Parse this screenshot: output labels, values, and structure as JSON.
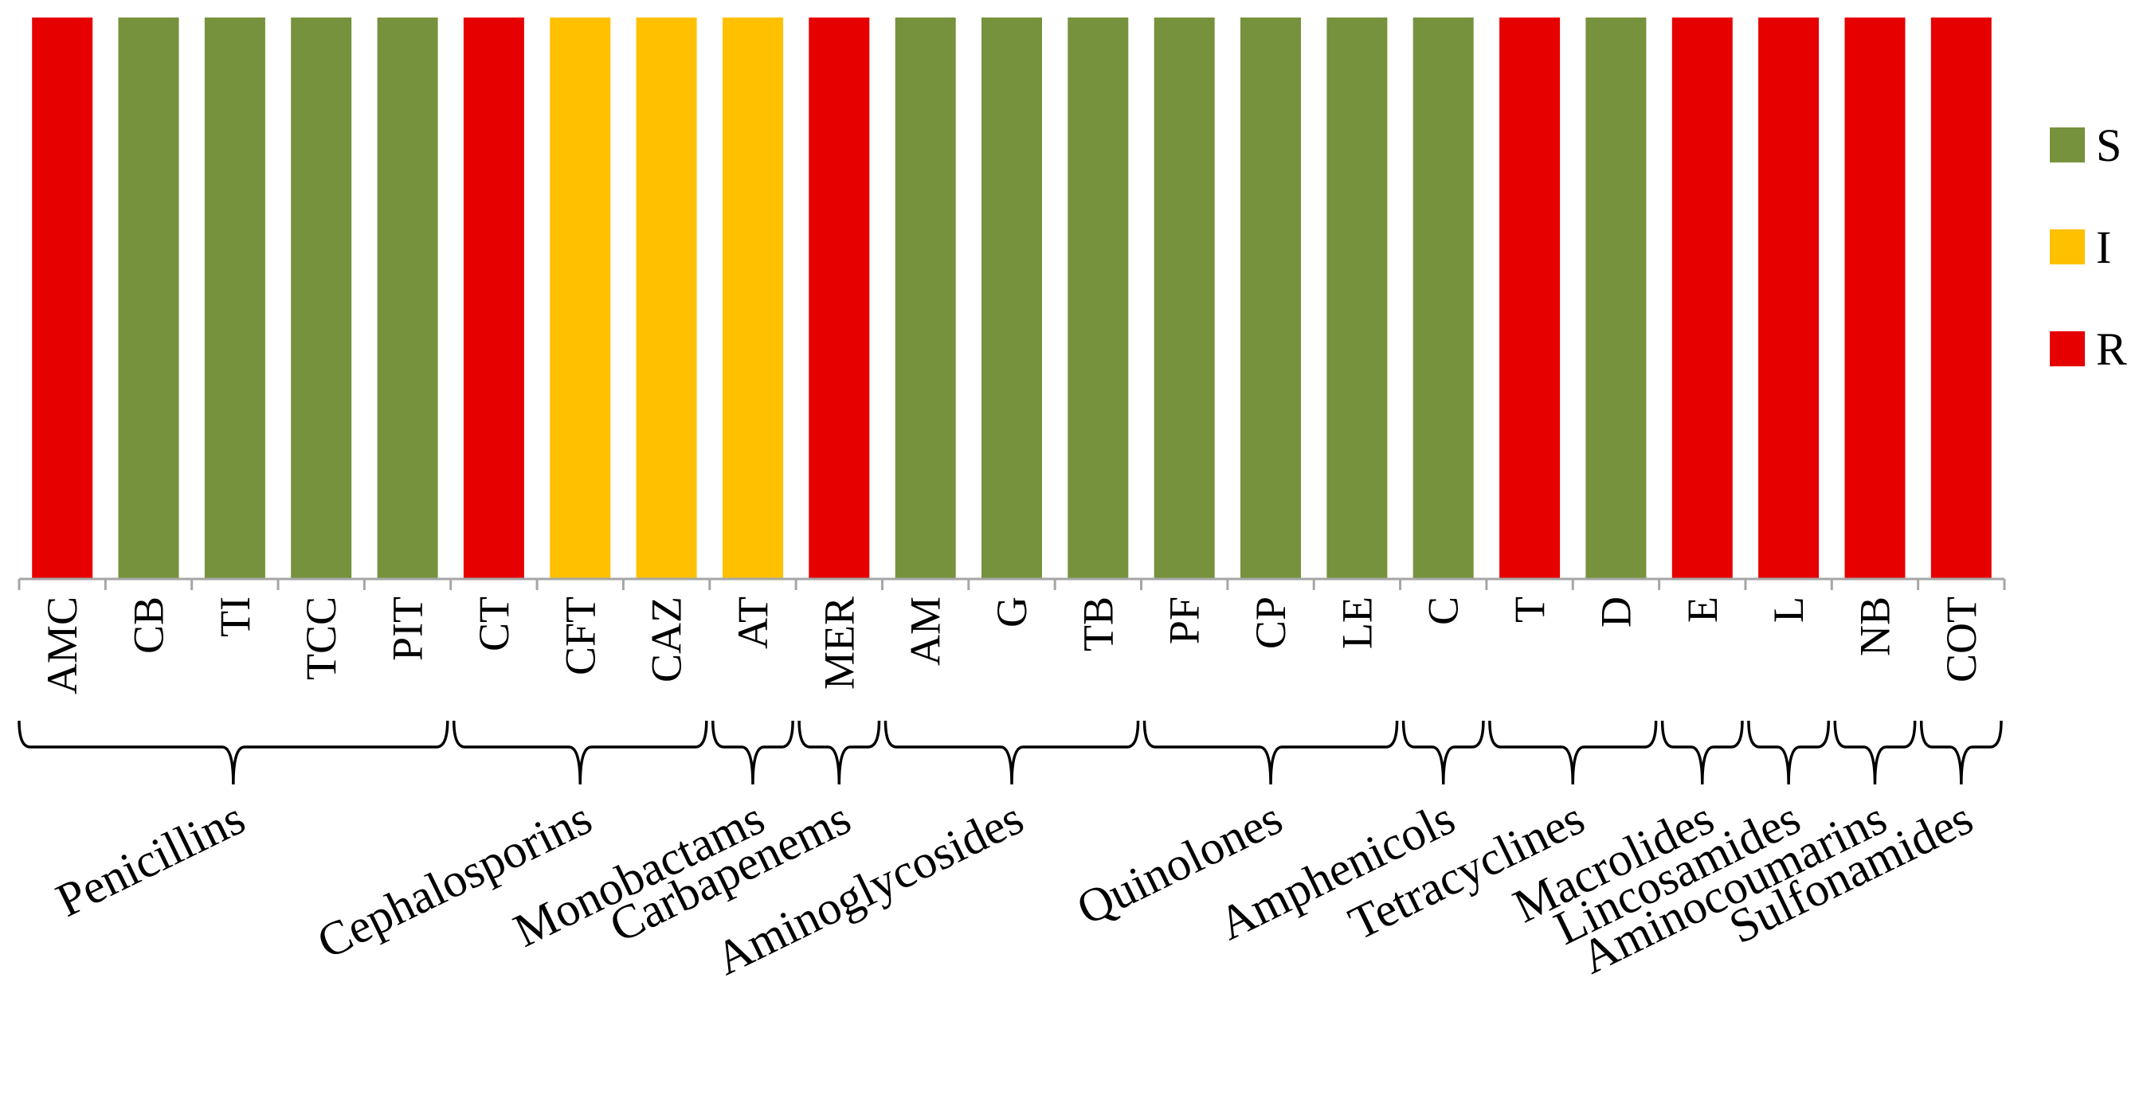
{
  "chart_data": {
    "type": "bar",
    "title": "",
    "xlabel": "",
    "ylabel": "",
    "ylim": [
      0,
      1
    ],
    "grid": false,
    "legend_position": "right",
    "categories": [
      "AMC",
      "CB",
      "TI",
      "TCC",
      "PIT",
      "CT",
      "CFT",
      "CAZ",
      "AT",
      "MER",
      "AM",
      "G",
      "TB",
      "PF",
      "CP",
      "LE",
      "C",
      "T",
      "D",
      "E",
      "L",
      "NB",
      "COT"
    ],
    "values": [
      1,
      1,
      1,
      1,
      1,
      1,
      1,
      1,
      1,
      1,
      1,
      1,
      1,
      1,
      1,
      1,
      1,
      1,
      1,
      1,
      1,
      1,
      1
    ],
    "status": [
      "R",
      "S",
      "S",
      "S",
      "S",
      "R",
      "I",
      "I",
      "I",
      "R",
      "S",
      "S",
      "S",
      "S",
      "S",
      "S",
      "S",
      "R",
      "S",
      "R",
      "R",
      "R",
      "R"
    ],
    "legend": [
      {
        "key": "S",
        "label": "S",
        "color": "#76923c"
      },
      {
        "key": "I",
        "label": "I",
        "color": "#ffc000"
      },
      {
        "key": "R",
        "label": "R",
        "color": "#e60000"
      }
    ],
    "groups": [
      {
        "label": "Penicillins",
        "start": 0,
        "end": 4
      },
      {
        "label": "Cephalosporins",
        "start": 5,
        "end": 7
      },
      {
        "label": "Monobactams",
        "start": 8,
        "end": 8
      },
      {
        "label": "Carbapenems",
        "start": 9,
        "end": 9
      },
      {
        "label": "Aminoglycosides",
        "start": 10,
        "end": 12
      },
      {
        "label": "Quinolones",
        "start": 13,
        "end": 15
      },
      {
        "label": "Amphenicols",
        "start": 16,
        "end": 16
      },
      {
        "label": "Tetracyclines",
        "start": 17,
        "end": 18
      },
      {
        "label": "Macrolides",
        "start": 19,
        "end": 19
      },
      {
        "label": "Lincosamides",
        "start": 20,
        "end": 20
      },
      {
        "label": "Aminocoumarins",
        "start": 21,
        "end": 21
      },
      {
        "label": "Sulfonamides",
        "start": 22,
        "end": 22
      }
    ]
  }
}
